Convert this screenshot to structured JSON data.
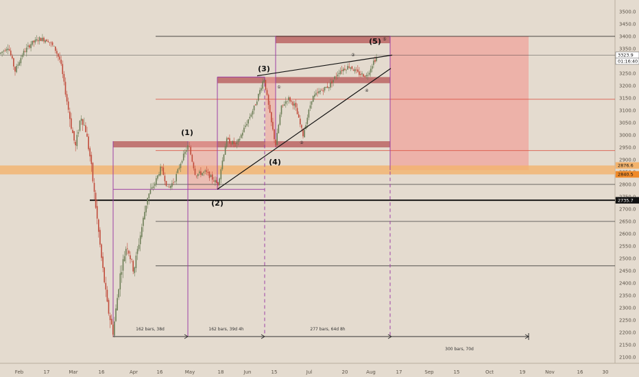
{
  "chart_data": {
    "type": "candlestick",
    "symbol_context": "price chart with Elliott wave annotations",
    "x_axis": {
      "tick_labels": [
        "Feb",
        "17",
        "Mar",
        "16",
        "Apr",
        "16",
        "May",
        "18",
        "Jun",
        "15",
        "Jul",
        "20",
        "Aug",
        "17",
        "Sep",
        "15",
        "Oct",
        "19",
        "Nov",
        "16",
        "30"
      ]
    },
    "y_axis": {
      "range": [
        2075,
        3560
      ],
      "ticks": [
        2100,
        2150,
        2200,
        2250,
        2300,
        2350,
        2400,
        2450,
        2500,
        2550,
        2600,
        2650,
        2700,
        2750,
        2800,
        2850,
        2900,
        2950,
        3000,
        3050,
        3100,
        3150,
        3200,
        3250,
        3300,
        3350,
        3400,
        3450,
        3500
      ],
      "tick_labels": [
        "2100.0",
        "2150.0",
        "2200.0",
        "2250.0",
        "2300.0",
        "2350.0",
        "2400.0",
        "2450.0",
        "2500.0",
        "2550.0",
        "2600.0",
        "2650.0",
        "2700.0",
        "2750.0",
        "2800.0",
        "2850.0",
        "2900.0",
        "2950.0",
        "3000.0",
        "3050.0",
        "3100.0",
        "3150.0",
        "3200.0",
        "3250.0",
        "3300.0",
        "3350.0",
        "3400.0",
        "3450.0",
        "3500.0"
      ]
    },
    "series": [
      {
        "type": "candlestick",
        "path": [
          [
            0,
            3330
          ],
          [
            12,
            3360
          ],
          [
            22,
            3260
          ],
          [
            33,
            3330
          ],
          [
            45,
            3370
          ],
          [
            58,
            3390
          ],
          [
            70,
            3385
          ],
          [
            80,
            3350
          ],
          [
            88,
            3300
          ],
          [
            95,
            3180
          ],
          [
            103,
            3050
          ],
          [
            110,
            2950
          ],
          [
            118,
            3080
          ],
          [
            125,
            3020
          ],
          [
            132,
            2900
          ],
          [
            140,
            2700
          ],
          [
            148,
            2500
          ],
          [
            157,
            2300
          ],
          [
            165,
            2200
          ],
          [
            175,
            2430
          ],
          [
            185,
            2560
          ],
          [
            195,
            2450
          ],
          [
            205,
            2600
          ],
          [
            215,
            2750
          ],
          [
            225,
            2800
          ],
          [
            235,
            2870
          ],
          [
            245,
            2780
          ],
          [
            255,
            2820
          ],
          [
            265,
            2900
          ],
          [
            275,
            2960
          ],
          [
            285,
            2840
          ],
          [
            300,
            2850
          ],
          [
            318,
            2800
          ],
          [
            330,
            2980
          ],
          [
            345,
            2960
          ],
          [
            360,
            3050
          ],
          [
            372,
            3120
          ],
          [
            385,
            3232
          ],
          [
            395,
            3060
          ],
          [
            402,
            2960
          ],
          [
            410,
            3110
          ],
          [
            420,
            3150
          ],
          [
            430,
            3120
          ],
          [
            442,
            3000
          ],
          [
            455,
            3150
          ],
          [
            468,
            3180
          ],
          [
            480,
            3200
          ],
          [
            495,
            3260
          ],
          [
            510,
            3280
          ],
          [
            522,
            3250
          ],
          [
            535,
            3240
          ],
          [
            545,
            3300
          ],
          [
            552,
            3320
          ]
        ]
      }
    ],
    "horizontal_lines": [
      {
        "value": 3400,
        "color": "#000000"
      },
      {
        "value": 3323.9,
        "color": "#2b2b2b"
      },
      {
        "value": 3145,
        "color": "#d94a3a"
      },
      {
        "value": 2937,
        "color": "#d94a3a"
      },
      {
        "value": 2800,
        "color": "#2b2b2b"
      },
      {
        "value": 2735.7,
        "color": "#000000"
      },
      {
        "value": 2650,
        "color": "#2b2b2b"
      },
      {
        "value": 2470,
        "color": "#2b2b2b"
      }
    ],
    "zones": [
      {
        "name": "supply-top",
        "y_from": 3372,
        "y_to": 3402,
        "color": "#b55555"
      },
      {
        "name": "supply-mid",
        "y_from": 3210,
        "y_to": 3235,
        "color": "#b55555"
      },
      {
        "name": "supply-low",
        "y_from": 2950,
        "y_to": 2975,
        "color": "#b55555"
      },
      {
        "name": "projection",
        "y_from": 2858,
        "y_to": 3400,
        "color": "#f0a49c"
      },
      {
        "name": "orange-band",
        "y_from": 2840.5,
        "y_to": 2876.6,
        "color": "#f3b36d"
      }
    ],
    "wave_labels": [
      "(1)",
      "(2)",
      "(3)",
      "(4)",
      "(5)"
    ],
    "sub_wave_labels": [
      "①",
      "②",
      "③",
      "④",
      "⑤"
    ],
    "duration_labels": [
      "162 bars, 38d",
      "162 bars, 39d 4h",
      "277 bars, 64d 8h",
      "300 bars, 70d"
    ],
    "price_tags": [
      {
        "value": 3323.9,
        "label": "3323.9",
        "bg": "#ffffff",
        "fg": "#111111"
      },
      {
        "value": 3300,
        "label": "01:16:40",
        "bg": "#ffffff",
        "fg": "#111111"
      },
      {
        "value": 2876.6,
        "label": "2876.6",
        "bg": "#f3b36d",
        "fg": "#111111"
      },
      {
        "value": 2840.5,
        "label": "2840.5",
        "bg": "#f08a2a",
        "fg": "#111111"
      },
      {
        "value": 2735.7,
        "label": "2735.7",
        "bg": "#111111",
        "fg": "#ffffff"
      }
    ]
  },
  "colors": {
    "background": "#e4dbcf",
    "up_candle": "#6b7d55",
    "down_candle": "#c04a3a",
    "purple_box": "#9c3fa4",
    "fib_line": "#d94a3a"
  }
}
